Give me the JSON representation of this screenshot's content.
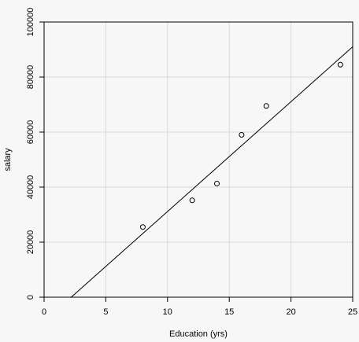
{
  "chart_data": {
    "type": "scatter",
    "title": "",
    "xlabel": "Education (yrs)",
    "ylabel": "salary",
    "xlim": [
      0,
      25
    ],
    "ylim": [
      0,
      100000
    ],
    "grid": true,
    "x_ticks": [
      0,
      5,
      10,
      15,
      20,
      25
    ],
    "y_ticks": [
      0,
      20000,
      40000,
      60000,
      80000,
      100000
    ],
    "x_tick_labels": [
      "0",
      "5",
      "10",
      "15",
      "20",
      "25"
    ],
    "y_tick_labels": [
      "0",
      "20000",
      "40000",
      "60000",
      "80000",
      "100000"
    ],
    "points": [
      {
        "x": 8,
        "y": 25500
      },
      {
        "x": 12,
        "y": 35200
      },
      {
        "x": 14,
        "y": 41300
      },
      {
        "x": 16,
        "y": 59000
      },
      {
        "x": 18,
        "y": 69500
      },
      {
        "x": 24,
        "y": 84500
      }
    ],
    "fit_line": {
      "x": [
        2.2,
        25
      ],
      "y": [
        0,
        91000
      ]
    },
    "colors": {
      "points": "#000000",
      "line": "#000000",
      "grid": "#d9d9d9",
      "background": "#f7f7f7"
    }
  }
}
